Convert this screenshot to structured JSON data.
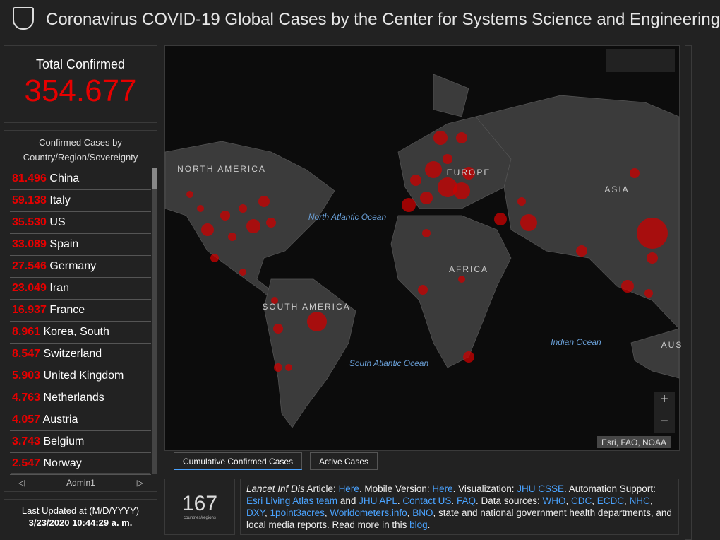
{
  "header": {
    "title": "Coronavirus COVID-19 Global Cases by the Center for Systems Science and Engineering"
  },
  "total": {
    "label": "Total Confirmed",
    "value": "354.677"
  },
  "country_list": {
    "title": "Confirmed Cases by Country/Region/Sovereignty",
    "items": [
      {
        "value": "81.496",
        "name": "China"
      },
      {
        "value": "59.138",
        "name": "Italy"
      },
      {
        "value": "35.530",
        "name": "US"
      },
      {
        "value": "33.089",
        "name": "Spain"
      },
      {
        "value": "27.546",
        "name": "Germany"
      },
      {
        "value": "23.049",
        "name": "Iran"
      },
      {
        "value": "16.937",
        "name": "France"
      },
      {
        "value": "8.961",
        "name": "Korea, South"
      },
      {
        "value": "8.547",
        "name": "Switzerland"
      },
      {
        "value": "5.903",
        "name": "United Kingdom"
      },
      {
        "value": "4.763",
        "name": "Netherlands"
      },
      {
        "value": "4.057",
        "name": "Austria"
      },
      {
        "value": "3.743",
        "name": "Belgium"
      },
      {
        "value": "2.547",
        "name": "Norway"
      }
    ],
    "nav_label": "Admin1"
  },
  "last_updated": {
    "label": "Last Updated at (M/D/YYYY)",
    "value": "3/23/2020 10:44:29 a. m."
  },
  "map": {
    "labels": {
      "north_america": "NORTH AMERICA",
      "north_atlantic": "North Atlantic Ocean",
      "europe": "EUROPE",
      "asia": "ASIA",
      "africa": "AFRICA",
      "south_america": "SOUTH AMERICA",
      "south_atlantic": "South Atlantic Ocean",
      "indian": "Indian Ocean",
      "australia": "AUS"
    },
    "attribution": "Esri, FAO, NOAA",
    "zoom_in": "+",
    "zoom_out": "−"
  },
  "tabs": [
    "Cumulative Confirmed Cases",
    "Active Cases"
  ],
  "count": {
    "value": "167",
    "label": "countries/regions"
  },
  "info": [
    {
      "text": "Lancet Inf Dis",
      "style": "italic"
    },
    {
      "text": " Article: "
    },
    {
      "text": "Here",
      "link": true
    },
    {
      "text": ". Mobile Version: "
    },
    {
      "text": "Here",
      "link": true
    },
    {
      "text": ". Visualization: "
    },
    {
      "text": "JHU CSSE",
      "link": true
    },
    {
      "text": ". Automation Support: "
    },
    {
      "text": "Esri Living Atlas team",
      "link": true
    },
    {
      "text": " and "
    },
    {
      "text": "JHU APL",
      "link": true
    },
    {
      "text": ". "
    },
    {
      "text": "Contact US",
      "link": true
    },
    {
      "text": ". "
    },
    {
      "text": "FAQ",
      "link": true
    },
    {
      "text": ". Data sources: "
    },
    {
      "text": "WHO",
      "link": true
    },
    {
      "text": ", "
    },
    {
      "text": "CDC",
      "link": true
    },
    {
      "text": ", "
    },
    {
      "text": "ECDC",
      "link": true
    },
    {
      "text": ", "
    },
    {
      "text": "NHC",
      "link": true
    },
    {
      "text": ", "
    },
    {
      "text": "DXY",
      "link": true
    },
    {
      "text": ", "
    },
    {
      "text": "1point3acres",
      "link": true
    },
    {
      "text": ", "
    },
    {
      "text": "Worldometers.info",
      "link": true
    },
    {
      "text": ", "
    },
    {
      "text": "BNO",
      "link": true
    },
    {
      "text": ", state and national government health departments, and local media reports.  Read more in this "
    },
    {
      "text": "blog",
      "link": true
    },
    {
      "text": "."
    }
  ]
}
